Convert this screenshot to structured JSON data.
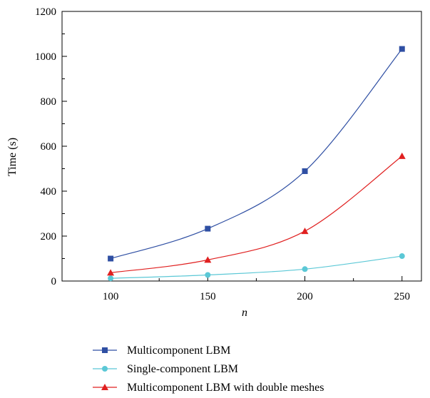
{
  "chart_data": {
    "type": "line",
    "title": "",
    "xlabel": "n",
    "ylabel": "Time (s)",
    "xlim": [
      75,
      260
    ],
    "ylim": [
      0,
      1200
    ],
    "xticks": [
      100,
      150,
      200,
      250
    ],
    "xtick_labels": [
      "100",
      "150",
      "200",
      "250"
    ],
    "yticks": [
      0,
      200,
      400,
      600,
      800,
      1000,
      1200
    ],
    "ytick_labels": [
      "0",
      "200",
      "400",
      "600",
      "800",
      "1000",
      "1200"
    ],
    "grid": false,
    "legend_position": "bottom",
    "x": [
      100,
      150,
      200,
      250
    ],
    "series": [
      {
        "name": "Multicomponent LBM",
        "values": [
          100,
          233,
          489,
          1033
        ],
        "color": "#2f4fa3",
        "marker": "square"
      },
      {
        "name": "Single-component LBM",
        "values": [
          12,
          27,
          53,
          111
        ],
        "color": "#5bc8d6",
        "marker": "circle"
      },
      {
        "name": "Multicomponent LBM with double meshes",
        "values": [
          37,
          94,
          222,
          556
        ],
        "color": "#e02020",
        "marker": "triangle"
      }
    ]
  }
}
